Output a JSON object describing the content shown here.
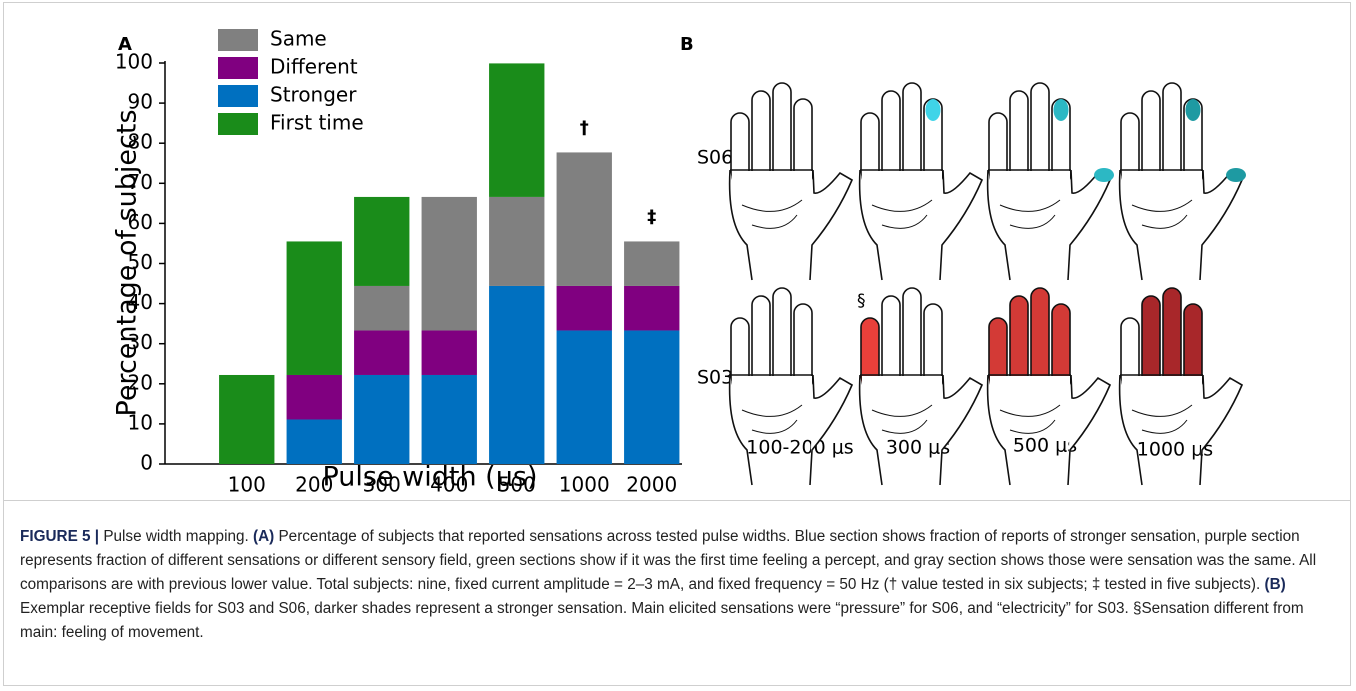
{
  "chart_data": {
    "type": "stacked-bar",
    "panel_label": "A",
    "categories": [
      "100",
      "200",
      "300",
      "400",
      "500",
      "1000",
      "2000"
    ],
    "series": [
      {
        "name": "Same",
        "color": "#808080",
        "values": [
          0,
          0,
          11.1,
          33.3,
          22.2,
          33.3,
          11.1
        ]
      },
      {
        "name": "Different",
        "color": "#800080",
        "values": [
          0,
          11.1,
          11.1,
          11.1,
          0,
          11.1,
          11.1
        ]
      },
      {
        "name": "Stronger",
        "color": "#0070c0",
        "values": [
          0,
          11.1,
          22.2,
          22.2,
          44.4,
          33.3,
          33.3
        ]
      },
      {
        "name": "First time",
        "color": "#1a8c1a",
        "values": [
          22.2,
          33.3,
          22.2,
          0,
          33.3,
          0,
          0
        ]
      }
    ],
    "ylim": [
      0,
      100
    ],
    "yticks": [
      0,
      10,
      20,
      30,
      40,
      50,
      60,
      70,
      80,
      90,
      100
    ],
    "ylabel": "Percentage of subjects",
    "xlabel": "Pulse width (μs)",
    "legend": "upper left",
    "annotations": [
      {
        "category": "1000",
        "text": "†"
      },
      {
        "category": "2000",
        "text": "‡"
      }
    ]
  },
  "panel_b": {
    "label": "B",
    "rows": [
      "S06",
      "S03"
    ],
    "columns": [
      "100-200 μs",
      "300 μs",
      "500 μs",
      "1000 μs"
    ],
    "note_mark": "§"
  },
  "caption": {
    "figure": "FIGURE 5 |",
    "title": "Pulse width mapping.",
    "a_label": "(A)",
    "a_text": "Percentage of subjects that reported sensations across tested pulse widths. Blue section shows fraction of reports of stronger sensation, purple section represents fraction of different sensations or different sensory field, green sections show if it was the first time feeling a percept, and gray section shows those were sensation was the same. All comparisons are with previous lower value. Total subjects: nine, fixed current amplitude = 2–3 mA, and fixed frequency = 50 Hz († value tested in six subjects; ‡ tested in five subjects).",
    "b_label": "(B)",
    "b_text": "Exemplar receptive fields for S03 and S06, darker shades represent a stronger sensation. Main elicited sensations were “pressure” for S06, and “electricity” for S03. §Sensation different from main: feeling of movement."
  }
}
